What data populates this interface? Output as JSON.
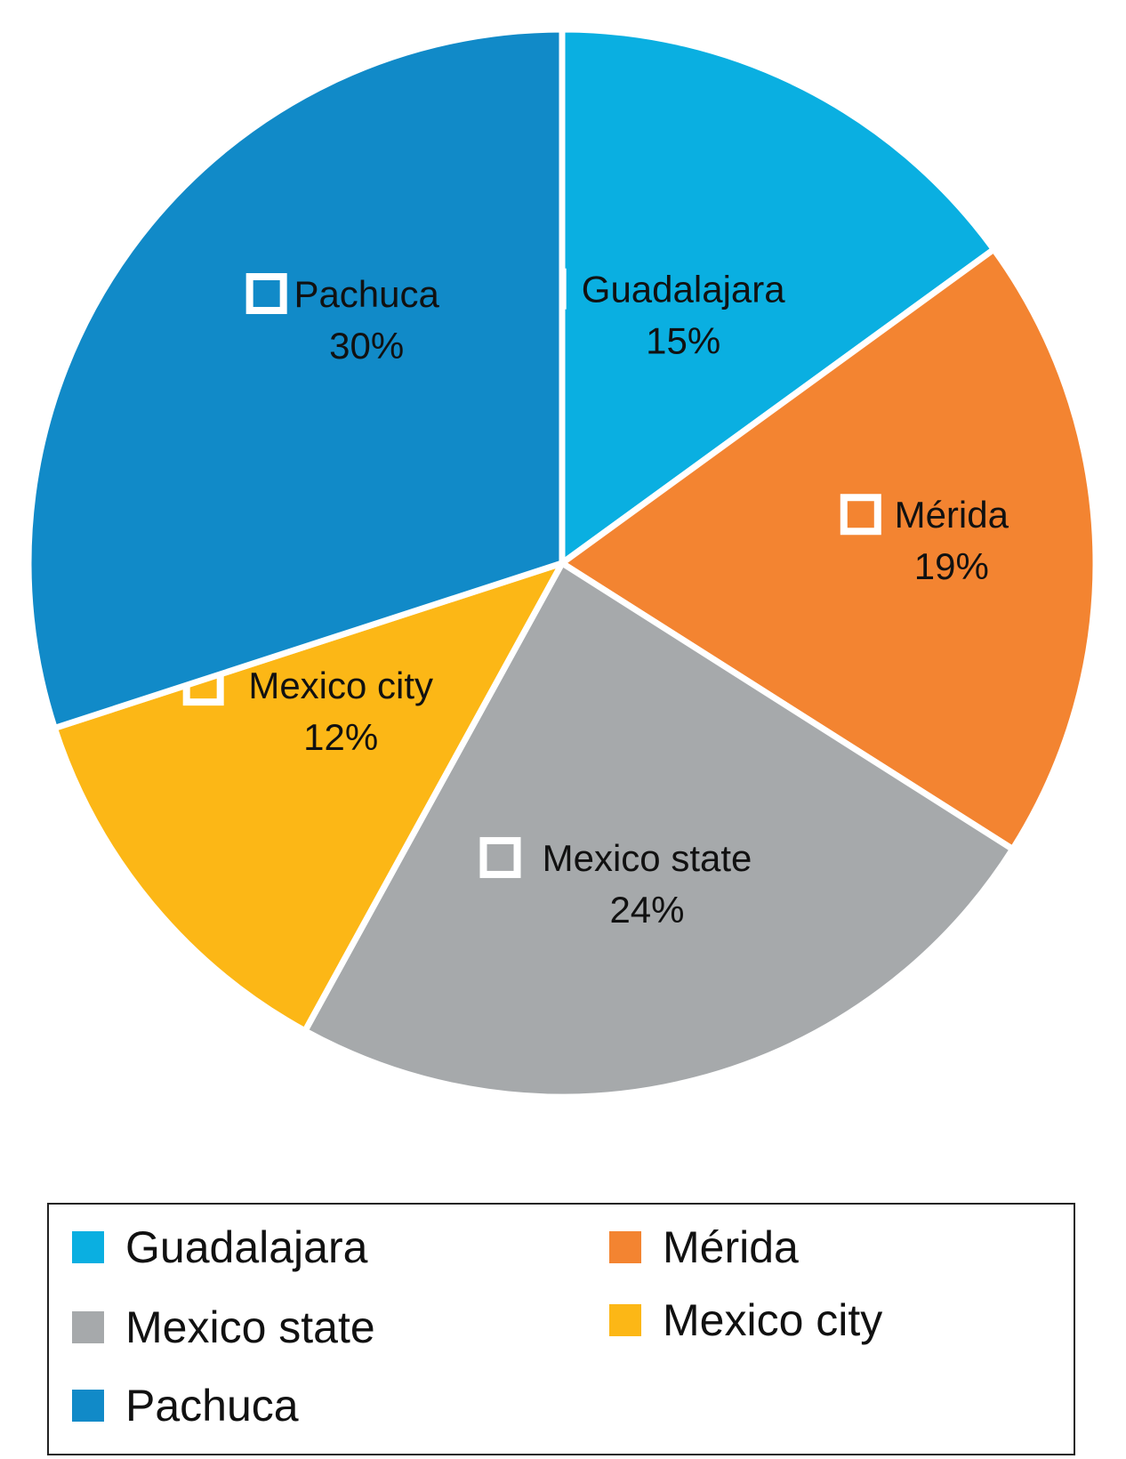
{
  "chart_data": {
    "type": "pie",
    "slices": [
      {
        "label": "Guadalajara",
        "value": 15,
        "value_label": "15%",
        "color": "#0aafe1"
      },
      {
        "label": "Mérida",
        "value": 19,
        "value_label": "19%",
        "color": "#f38431"
      },
      {
        "label": "Mexico state",
        "value": 24,
        "value_label": "24%",
        "color": "#a6a9ab"
      },
      {
        "label": "Mexico city",
        "value": 12,
        "value_label": "12%",
        "color": "#fcb716"
      },
      {
        "label": "Pachuca",
        "value": 30,
        "value_label": "30%",
        "color": "#118ac8"
      }
    ],
    "start_angle_deg": 0,
    "direction": "clockwise",
    "legend_position": "bottom",
    "legend_columns": 2
  },
  "legend": {
    "items": [
      {
        "label": "Guadalajara",
        "color": "#0aafe1"
      },
      {
        "label": "Mérida",
        "color": "#f38431"
      },
      {
        "label": "Mexico state",
        "color": "#a6a9ab"
      },
      {
        "label": "Mexico city",
        "color": "#fcb716"
      },
      {
        "label": "Pachuca",
        "color": "#118ac8"
      }
    ]
  }
}
